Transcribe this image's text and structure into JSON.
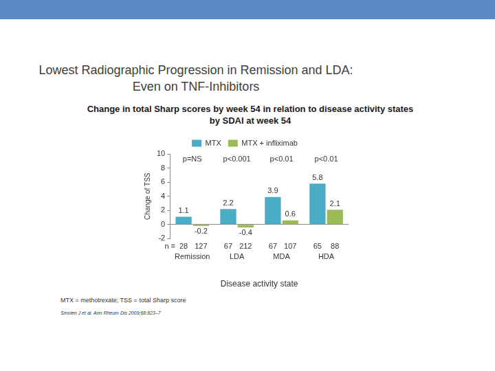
{
  "chart_data": {
    "type": "bar",
    "title": [
      "Lowest Radiographic Progression in Remission and LDA:",
      "Even on TNF-Inhibitors"
    ],
    "subtitle": [
      "Change in total Sharp scores by week 54 in relation to disease activity states",
      "by SDAI at week 54"
    ],
    "categories": [
      "Remission",
      "LDA",
      "MDA",
      "HDA"
    ],
    "series": [
      {
        "name": "MTX",
        "color": "#4bacc6",
        "values": [
          1.1,
          2.2,
          3.9,
          5.8
        ],
        "n": [
          28,
          67,
          67,
          65
        ]
      },
      {
        "name": "MTX + infliximab",
        "color": "#9bbb59",
        "values": [
          -0.2,
          -0.4,
          0.6,
          2.1
        ],
        "n": [
          127,
          212,
          107,
          88
        ]
      }
    ],
    "p_values": [
      "p=NS",
      "p<0.001",
      "p<0.01",
      "p<0.01"
    ],
    "n_label": "n =",
    "ylabel": "Change of TSS",
    "xlabel": "Disease activity state",
    "ylim": [
      -2,
      10
    ],
    "yticks": [
      -2,
      0,
      2,
      4,
      6,
      8,
      10
    ],
    "grid": false,
    "legend": "top",
    "data_labels": true,
    "footnotes": [
      "MTX = methotrexate; TSS = total Sharp score",
      "Smolen J et al. Ann Rheum Dis 2009;68:823–7"
    ]
  }
}
